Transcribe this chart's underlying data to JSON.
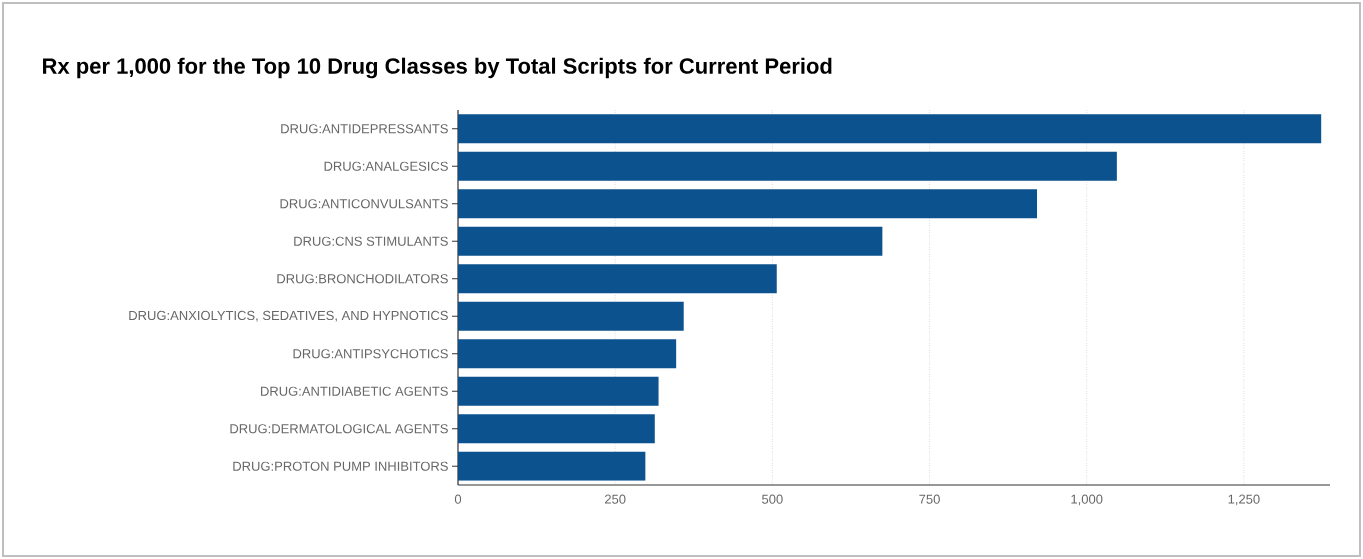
{
  "chart_data": {
    "type": "bar",
    "orientation": "horizontal",
    "title": "Rx per 1,000 for the Top 10 Drug Classes by Total Scripts for Current Period",
    "categories": [
      "DRUG:ANTIDEPRESSANTS",
      "DRUG:ANALGESICS",
      "DRUG:ANTICONVULSANTS",
      "DRUG:CNS STIMULANTS",
      "DRUG:BRONCHODILATORS",
      "DRUG:ANXIOLYTICS, SEDATIVES, AND HYPNOTICS",
      "DRUG:ANTIPSYCHOTICS",
      "DRUG:ANTIDIABETIC AGENTS",
      "DRUG:DERMATOLOGICAL AGENTS",
      "DRUG:PROTON PUMP INHIBITORS"
    ],
    "values": [
      1373,
      1048,
      921,
      675,
      507,
      359,
      347,
      319,
      313,
      298
    ],
    "color": "#0b528f",
    "xlim": [
      0,
      1387
    ],
    "xticks": [
      0,
      250,
      500,
      750,
      {
        "value": 1000,
        "label": "1,000"
      },
      {
        "value": 1250,
        "label": "1,250"
      }
    ],
    "grid": "x"
  }
}
